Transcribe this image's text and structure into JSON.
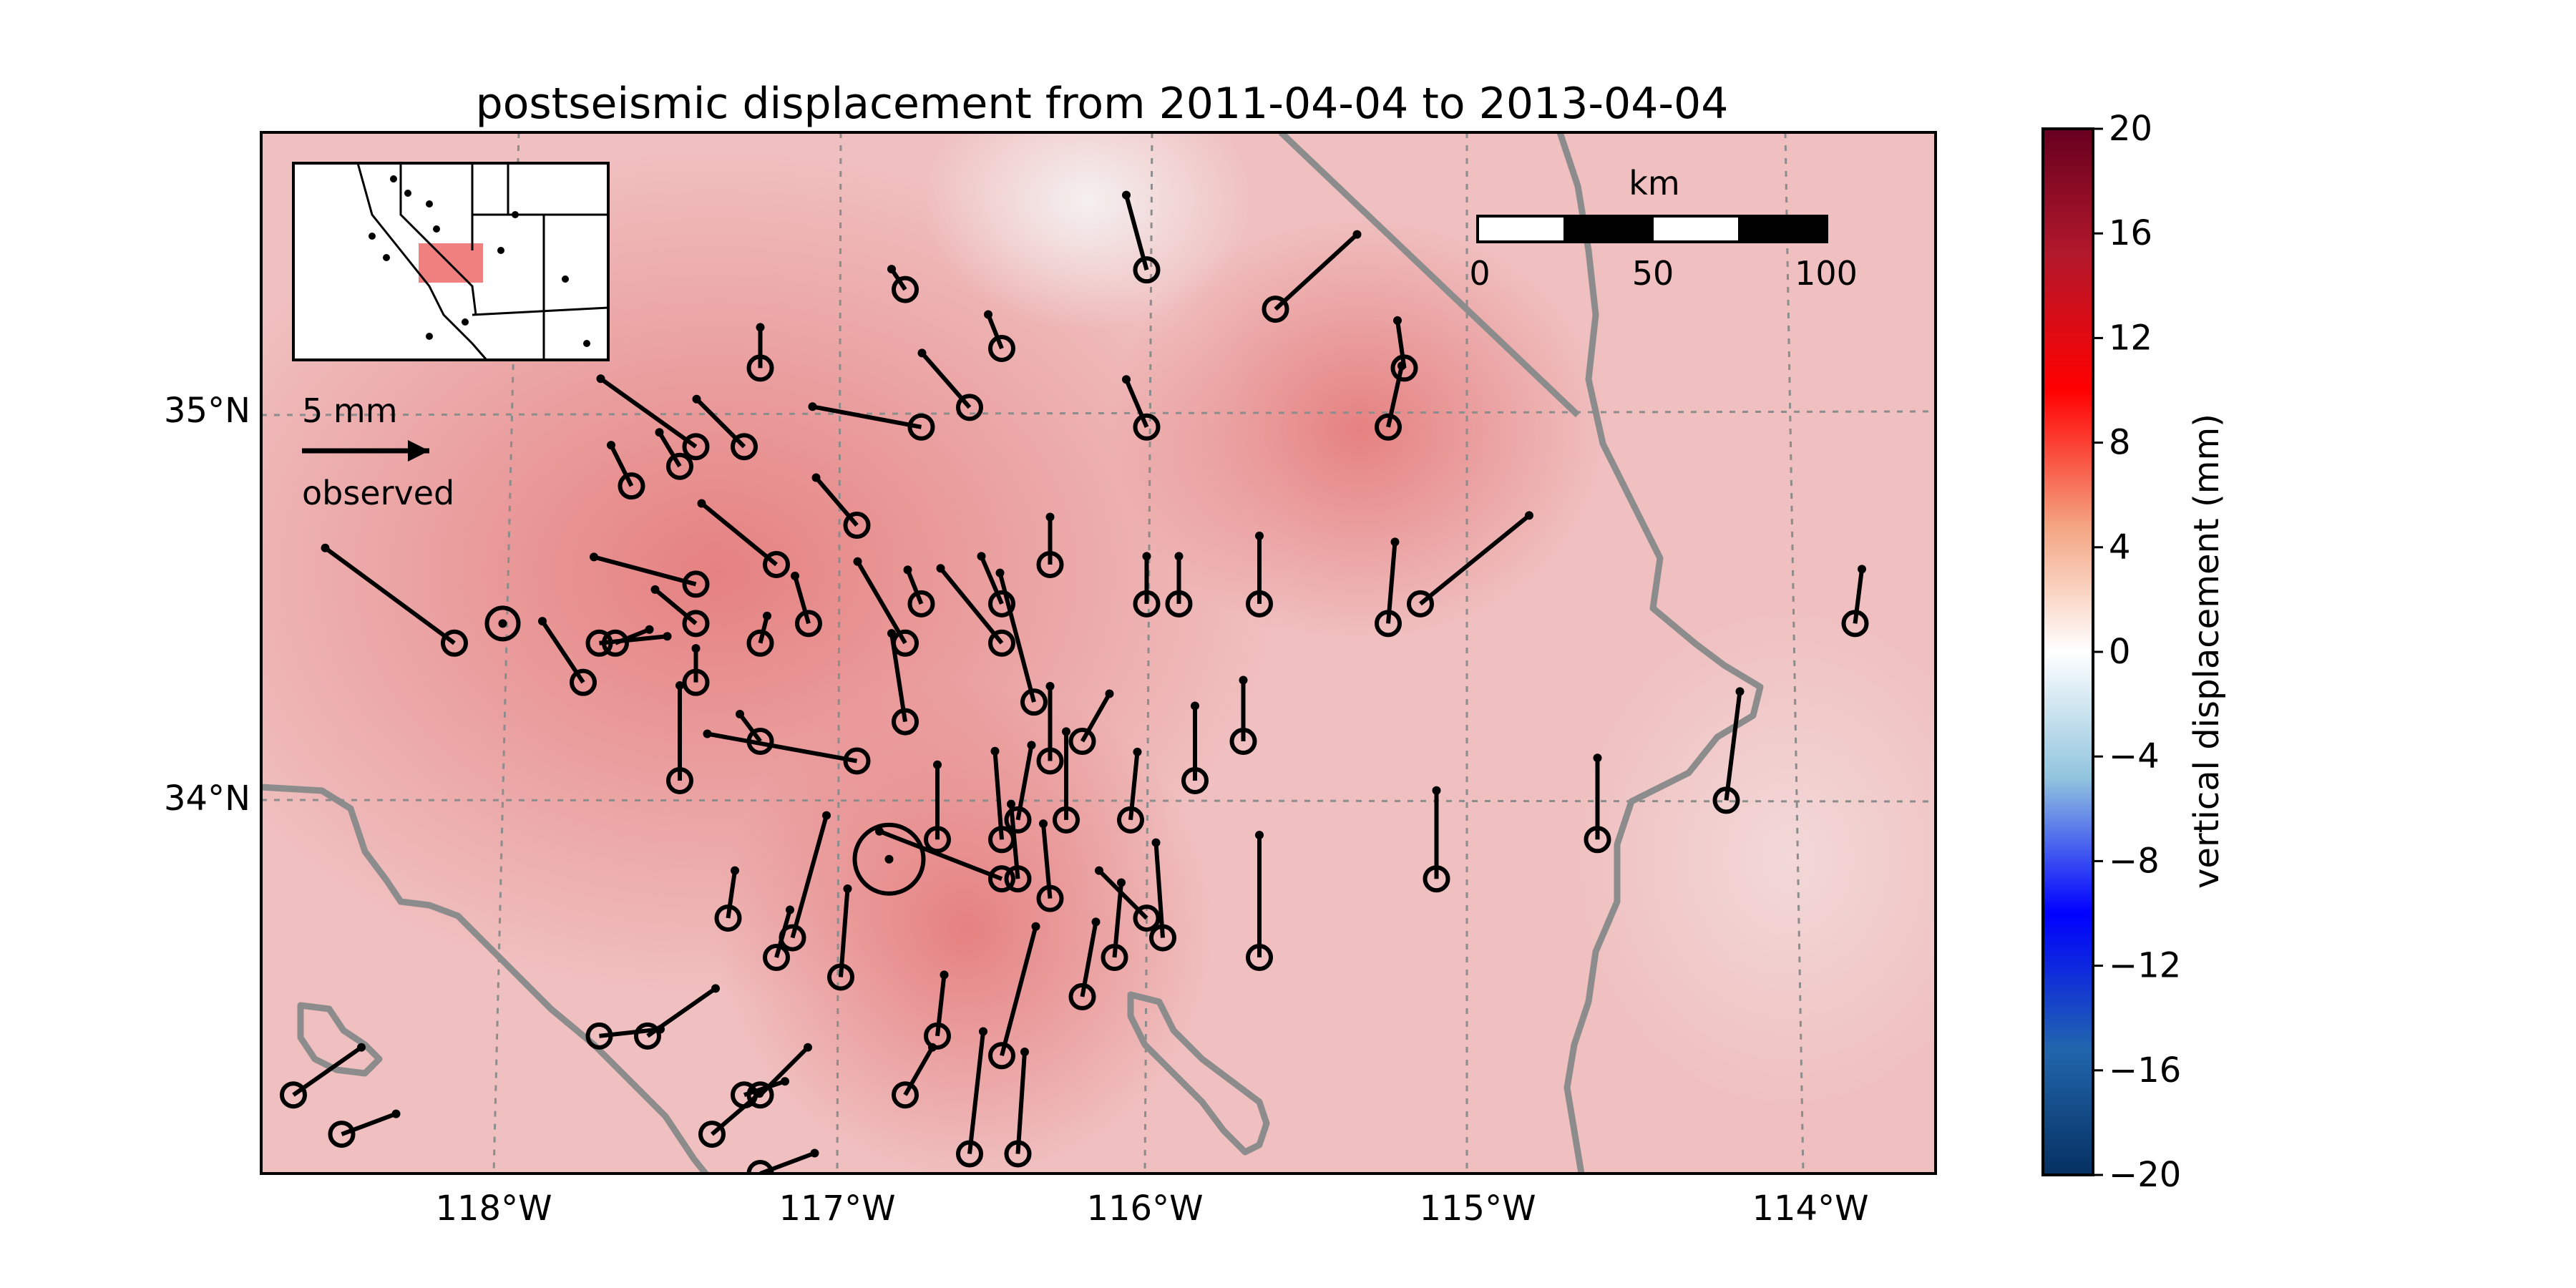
{
  "title": "postseismic displacement from 2011-04-04 to 2013-04-04",
  "map": {
    "lon_ticks": [
      "118°W",
      "117°W",
      "116°W",
      "115°W",
      "114°W"
    ],
    "lat_ticks": [
      "35°N",
      "34°N"
    ],
    "extent": {
      "lon": [
        -118.8,
        -113.6
      ],
      "lat": [
        33.1,
        35.75
      ]
    }
  },
  "legend": {
    "value_label": "5 mm",
    "caption": "observed"
  },
  "scale_bar": {
    "unit": "km",
    "labels": [
      "0",
      "50",
      "100"
    ]
  },
  "colorbar": {
    "label": "vertical displacement (mm)",
    "ticks": [
      "20",
      "16",
      "12",
      "8",
      "4",
      "0",
      "−4",
      "−8",
      "−12",
      "−16",
      "−20"
    ],
    "colors": {
      "max": "#67001f",
      "high": "#d6604d",
      "mid": "#f7f7f7",
      "low": "#4393c3",
      "min": "#053061"
    }
  },
  "colors": {
    "background_fill": "#f0c4c4",
    "hot_fill": "#e88a8a",
    "boundary": "#8c8c8c",
    "vector": "#000000",
    "grid": "#8c8c8c"
  },
  "stations": [
    {
      "lon": -118.2,
      "lat": 34.45,
      "de": -0.95,
      "dn": 0.7
    },
    {
      "lon": -118.05,
      "lat": 34.5,
      "de": 0,
      "dn": 0
    },
    {
      "lon": -117.8,
      "lat": 34.35,
      "de": -0.3,
      "dn": 0.45
    },
    {
      "lon": -117.75,
      "lat": 34.45,
      "de": 0.5,
      "dn": 0.05
    },
    {
      "lon": -117.7,
      "lat": 34.45,
      "de": 0.25,
      "dn": 0.1
    },
    {
      "lon": -117.65,
      "lat": 34.85,
      "de": -0.15,
      "dn": 0.3
    },
    {
      "lon": -117.5,
      "lat": 34.9,
      "de": -0.15,
      "dn": 0.25
    },
    {
      "lon": -117.45,
      "lat": 34.95,
      "de": -0.7,
      "dn": 0.5
    },
    {
      "lon": -117.3,
      "lat": 34.95,
      "de": -0.35,
      "dn": 0.35
    },
    {
      "lon": -117.25,
      "lat": 35.15,
      "de": 0,
      "dn": 0.3
    },
    {
      "lon": -117.45,
      "lat": 34.6,
      "de": -0.75,
      "dn": 0.2
    },
    {
      "lon": -117.45,
      "lat": 34.5,
      "de": -0.3,
      "dn": 0.25
    },
    {
      "lon": -117.45,
      "lat": 34.35,
      "de": 0,
      "dn": 0.25
    },
    {
      "lon": -117.25,
      "lat": 34.45,
      "de": 0.05,
      "dn": 0.2
    },
    {
      "lon": -117.2,
      "lat": 34.65,
      "de": -0.55,
      "dn": 0.45
    },
    {
      "lon": -117.1,
      "lat": 34.5,
      "de": -0.1,
      "dn": 0.35
    },
    {
      "lon": -116.95,
      "lat": 34.75,
      "de": -0.3,
      "dn": 0.35
    },
    {
      "lon": -116.8,
      "lat": 34.45,
      "de": -0.35,
      "dn": 0.6
    },
    {
      "lon": -116.75,
      "lat": 34.55,
      "de": -0.1,
      "dn": 0.25
    },
    {
      "lon": -116.8,
      "lat": 34.25,
      "de": -0.1,
      "dn": 0.65
    },
    {
      "lon": -117.5,
      "lat": 34.1,
      "de": 0,
      "dn": 0.7
    },
    {
      "lon": -117.25,
      "lat": 34.2,
      "de": -0.15,
      "dn": 0.2
    },
    {
      "lon": -116.95,
      "lat": 34.15,
      "de": -1.1,
      "dn": 0.2
    },
    {
      "lon": -116.75,
      "lat": 35.0,
      "de": -0.8,
      "dn": 0.15
    },
    {
      "lon": -116.6,
      "lat": 35.05,
      "de": -0.35,
      "dn": 0.4
    },
    {
      "lon": -116.5,
      "lat": 35.2,
      "de": -0.1,
      "dn": 0.25
    },
    {
      "lon": -116.8,
      "lat": 35.35,
      "de": -0.1,
      "dn": 0.15
    },
    {
      "lon": -116.05,
      "lat": 35.4,
      "de": -0.15,
      "dn": 0.55
    },
    {
      "lon": -116.05,
      "lat": 35.0,
      "de": -0.15,
      "dn": 0.35
    },
    {
      "lon": -115.65,
      "lat": 35.3,
      "de": 0.6,
      "dn": 0.55
    },
    {
      "lon": -115.3,
      "lat": 35.0,
      "de": 0.1,
      "dn": 0.45
    },
    {
      "lon": -115.25,
      "lat": 35.15,
      "de": -0.05,
      "dn": 0.35
    },
    {
      "lon": -116.5,
      "lat": 34.45,
      "de": -0.45,
      "dn": 0.55
    },
    {
      "lon": -116.5,
      "lat": 34.55,
      "de": -0.15,
      "dn": 0.35
    },
    {
      "lon": -116.4,
      "lat": 34.3,
      "de": -0.25,
      "dn": 0.95
    },
    {
      "lon": -116.35,
      "lat": 34.65,
      "de": 0,
      "dn": 0.35
    },
    {
      "lon": -116.05,
      "lat": 34.55,
      "de": 0,
      "dn": 0.35
    },
    {
      "lon": -115.95,
      "lat": 34.55,
      "de": 0,
      "dn": 0.35
    },
    {
      "lon": -115.7,
      "lat": 34.55,
      "de": 0,
      "dn": 0.5
    },
    {
      "lon": -115.3,
      "lat": 34.5,
      "de": 0.05,
      "dn": 0.6
    },
    {
      "lon": -115.2,
      "lat": 34.55,
      "de": 0.8,
      "dn": 0.65
    },
    {
      "lon": -113.85,
      "lat": 34.5,
      "de": 0.05,
      "dn": 0.4
    },
    {
      "lon": -116.35,
      "lat": 34.15,
      "de": 0,
      "dn": 0.55
    },
    {
      "lon": -116.25,
      "lat": 34.2,
      "de": 0.2,
      "dn": 0.35
    },
    {
      "lon": -115.9,
      "lat": 34.1,
      "de": 0,
      "dn": 0.55
    },
    {
      "lon": -115.75,
      "lat": 34.2,
      "de": 0,
      "dn": 0.45
    },
    {
      "lon": -116.7,
      "lat": 33.95,
      "de": 0,
      "dn": 0.55
    },
    {
      "lon": -116.5,
      "lat": 33.95,
      "de": -0.05,
      "dn": 0.65
    },
    {
      "lon": -116.45,
      "lat": 34.0,
      "de": 0.1,
      "dn": 0.55
    },
    {
      "lon": -116.3,
      "lat": 34.0,
      "de": 0,
      "dn": 0.65
    },
    {
      "lon": -116.1,
      "lat": 34.0,
      "de": 0.05,
      "dn": 0.5
    },
    {
      "lon": -116.85,
      "lat": 33.9,
      "de": 0,
      "dn": 0
    },
    {
      "lon": -116.5,
      "lat": 33.85,
      "de": -0.9,
      "dn": 0.35
    },
    {
      "lon": -116.45,
      "lat": 33.85,
      "de": -0.05,
      "dn": 0.55
    },
    {
      "lon": -116.35,
      "lat": 33.8,
      "de": -0.05,
      "dn": 0.55
    },
    {
      "lon": -116.05,
      "lat": 33.75,
      "de": -0.35,
      "dn": 0.35
    },
    {
      "lon": -116.15,
      "lat": 33.65,
      "de": 0.05,
      "dn": 0.55
    },
    {
      "lon": -116.0,
      "lat": 33.7,
      "de": -0.05,
      "dn": 0.7
    },
    {
      "lon": -116.25,
      "lat": 33.55,
      "de": 0.1,
      "dn": 0.55
    },
    {
      "lon": -115.7,
      "lat": 33.65,
      "de": 0,
      "dn": 0.9
    },
    {
      "lon": -115.15,
      "lat": 33.85,
      "de": 0,
      "dn": 0.65
    },
    {
      "lon": -114.65,
      "lat": 33.95,
      "de": 0,
      "dn": 0.6
    },
    {
      "lon": -114.25,
      "lat": 34.05,
      "de": 0.1,
      "dn": 0.8
    },
    {
      "lon": -117.35,
      "lat": 33.75,
      "de": 0.05,
      "dn": 0.35
    },
    {
      "lon": -117.2,
      "lat": 33.65,
      "de": 0.1,
      "dn": 0.35
    },
    {
      "lon": -117.15,
      "lat": 33.7,
      "de": 0.25,
      "dn": 0.9
    },
    {
      "lon": -117.0,
      "lat": 33.6,
      "de": 0.05,
      "dn": 0.65
    },
    {
      "lon": -116.7,
      "lat": 33.45,
      "de": 0.05,
      "dn": 0.45
    },
    {
      "lon": -116.5,
      "lat": 33.4,
      "de": 0.25,
      "dn": 0.95
    },
    {
      "lon": -116.6,
      "lat": 33.15,
      "de": 0.1,
      "dn": 0.9
    },
    {
      "lon": -116.45,
      "lat": 33.15,
      "de": 0.05,
      "dn": 0.75
    },
    {
      "lon": -116.8,
      "lat": 33.3,
      "de": 0.2,
      "dn": 0.35
    },
    {
      "lon": -117.75,
      "lat": 33.45,
      "de": 0.45,
      "dn": 0.05
    },
    {
      "lon": -117.6,
      "lat": 33.45,
      "de": 0.5,
      "dn": 0.35
    },
    {
      "lon": -117.25,
      "lat": 33.3,
      "de": 0.35,
      "dn": 0.35
    },
    {
      "lon": -117.4,
      "lat": 33.2,
      "de": 0.35,
      "dn": 0.3
    },
    {
      "lon": -117.3,
      "lat": 33.3,
      "de": 0.3,
      "dn": 0.1
    },
    {
      "lon": -117.25,
      "lat": 33.1,
      "de": 0.4,
      "dn": 0.15
    },
    {
      "lon": -118.7,
      "lat": 33.3,
      "de": 0.5,
      "dn": 0.35
    },
    {
      "lon": -118.55,
      "lat": 33.2,
      "de": 0.4,
      "dn": 0.15
    }
  ]
}
